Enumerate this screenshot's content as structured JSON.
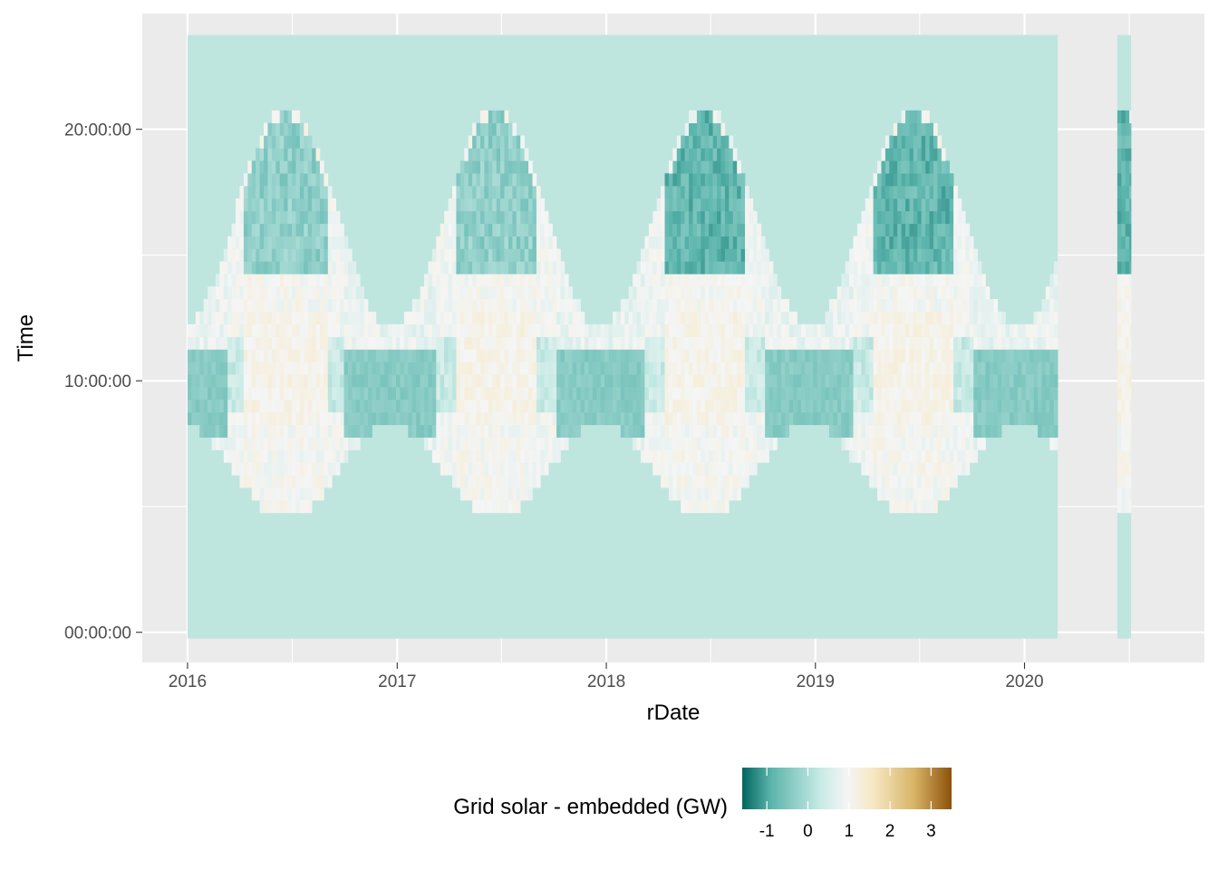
{
  "chart_data": {
    "type": "heatmap",
    "title": "",
    "xlabel": "rDate",
    "ylabel": "Time",
    "x_ticks": [
      "2016",
      "2017",
      "2018",
      "2019",
      "2020"
    ],
    "y_ticks": [
      "00:00:00",
      "10:00:00",
      "20:00:00"
    ],
    "xlim": [
      "2015-10-14",
      "2020-11-10"
    ],
    "ylim_hours": [
      -1.2,
      24.6
    ],
    "data_range_x": [
      {
        "start": "2016-01-01",
        "end": "2020-02-28"
      },
      {
        "start": "2020-06-11",
        "end": "2020-07-05"
      }
    ],
    "data_range_hours": [
      -0.25,
      23.75
    ],
    "grid": true,
    "colorbar": {
      "title": "Grid solar - embedded (GW)",
      "ticks": [
        "-1",
        "0",
        "1",
        "2",
        "3"
      ],
      "range": [
        -1.6,
        3.5
      ],
      "colors": [
        "#01665e",
        "#5ab4ac",
        "#c7eae5",
        "#f5f5f5",
        "#f6e8c3",
        "#d8b365",
        "#8c510a"
      ],
      "placement": "bottom"
    },
    "pattern": "daily heatmap of half-hourly grid solar minus embedded solar; about 0.3 GW at night, below zero around 08:00-11:00 in winter and 14:00-19:00 in summer, slightly positive around midday"
  },
  "colors": {
    "panel": "#ebebeb",
    "gridline": "#ffffff",
    "night_fill": "#bfe5df"
  }
}
